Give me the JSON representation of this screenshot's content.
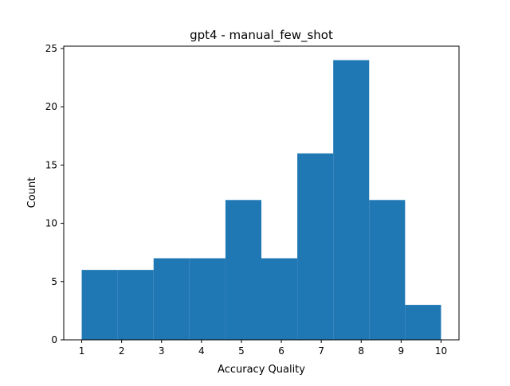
{
  "chart_data": {
    "type": "bar",
    "title": "gpt4 - manual_few_shot",
    "xlabel": "Accuracy Quality",
    "ylabel": "Count",
    "bin_edges": [
      1.0,
      1.9,
      2.8,
      3.7,
      4.6,
      5.5,
      6.4,
      7.3,
      8.2,
      9.1,
      10.0
    ],
    "values": [
      6,
      6,
      7,
      7,
      12,
      7,
      16,
      24,
      12,
      3
    ],
    "xlim": [
      0.55,
      10.45
    ],
    "ylim": [
      0,
      25.2
    ],
    "xticks": [
      1,
      2,
      3,
      4,
      5,
      6,
      7,
      8,
      9,
      10
    ],
    "xtick_labels": [
      "1",
      "2",
      "3",
      "4",
      "5",
      "6",
      "7",
      "8",
      "9",
      "10"
    ],
    "yticks": [
      0,
      5,
      10,
      15,
      20,
      25
    ],
    "ytick_labels": [
      "0",
      "5",
      "10",
      "15",
      "20",
      "25"
    ],
    "bar_color": "#1f77b4",
    "grid": false,
    "legend": "none"
  }
}
